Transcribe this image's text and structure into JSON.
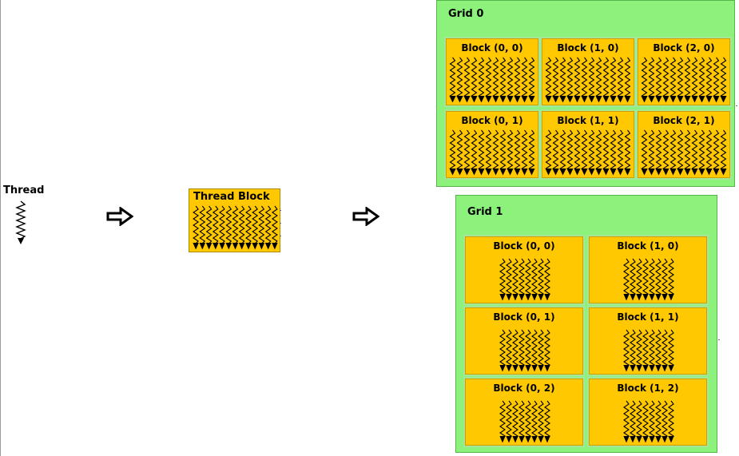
{
  "thread": {
    "label": "Thread"
  },
  "thread_block": {
    "label": "Thread Block"
  },
  "grids": [
    {
      "title": "Grid 0",
      "blocks": [
        "Block (0, 0)",
        "Block (1, 0)",
        "Block (2, 0)",
        "Block (0, 1)",
        "Block (1, 1)",
        "Block (2, 1)"
      ]
    },
    {
      "title": "Grid 1",
      "blocks": [
        "Block (0, 0)",
        "Block (1, 0)",
        "Block (0, 1)",
        "Block (1, 1)",
        "Block (0, 2)",
        "Block (1, 2)"
      ]
    }
  ],
  "colors": {
    "block_fill": "#ffc800",
    "grid_fill": "#8cf27c",
    "arrow_outline": "#000000"
  }
}
